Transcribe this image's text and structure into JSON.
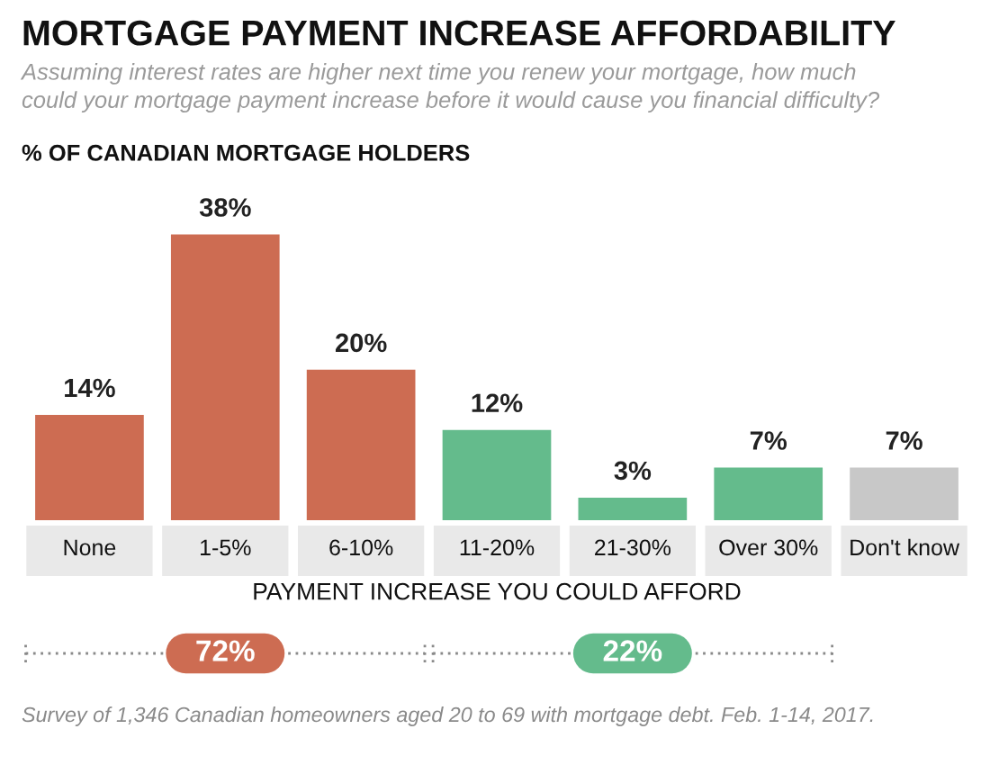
{
  "chart_data": {
    "type": "bar",
    "title": "MORTGAGE PAYMENT INCREASE AFFORDABILITY",
    "subtitle": "Assuming interest rates are higher next time you renew your mortgage, how much\ncould your mortgage payment increase before it would cause you financial difficulty?",
    "ylabel": "% OF CANADIAN MORTGAGE HOLDERS",
    "xlabel": "PAYMENT INCREASE YOU COULD AFFORD",
    "categories": [
      "None",
      "1-5%",
      "6-10%",
      "11-20%",
      "21-30%",
      "Over 30%",
      "Don't know"
    ],
    "values": [
      14,
      38,
      20,
      12,
      3,
      7,
      7
    ],
    "colors": [
      "#cd6c52",
      "#cd6c52",
      "#cd6c52",
      "#64bb8c",
      "#64bb8c",
      "#64bb8c",
      "#c8c8c8"
    ],
    "value_labels": [
      "14%",
      "38%",
      "20%",
      "12%",
      "3%",
      "7%",
      "7%"
    ],
    "annotations": [
      "72%",
      "22%",
      "Survey of 1,346 Canadian homeowners aged 20 to 69 with mortgage debt. Feb. 1-14, 2017."
    ]
  }
}
